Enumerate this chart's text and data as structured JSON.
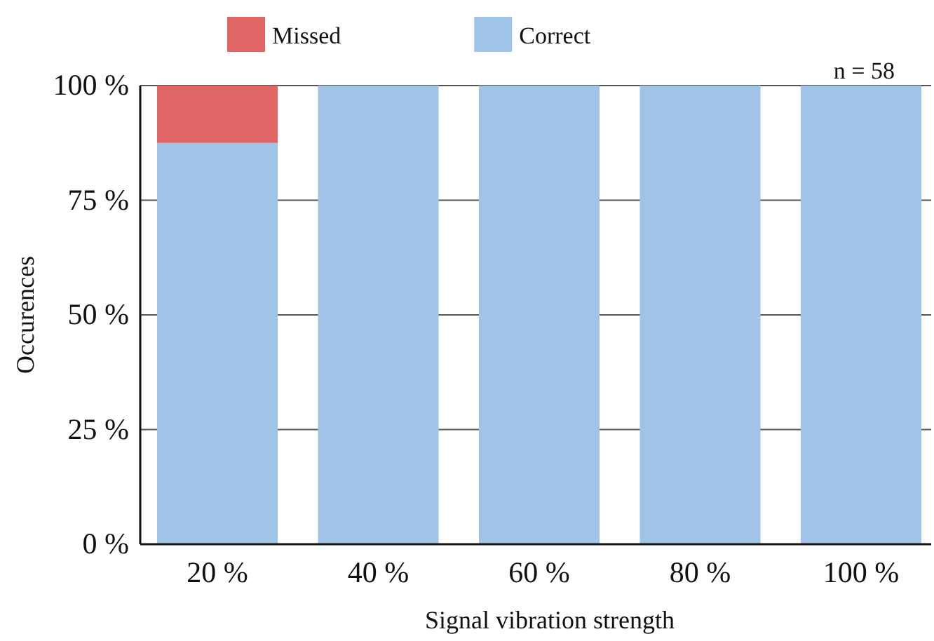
{
  "chart_data": {
    "type": "bar",
    "stacked": true,
    "categories": [
      "20 %",
      "40 %",
      "60 %",
      "80 %",
      "100 %"
    ],
    "series": [
      {
        "name": "Correct",
        "color": "#a0c4e8",
        "values": [
          87.5,
          100,
          100,
          100,
          100
        ]
      },
      {
        "name": "Missed",
        "color": "#e06666",
        "values": [
          12.5,
          0,
          0,
          0,
          0
        ]
      }
    ],
    "xlabel": "Signal vibration strength",
    "ylabel": "Occurences",
    "ylim": [
      0,
      100
    ],
    "yticks": [
      {
        "value": 0,
        "label": "0 %"
      },
      {
        "value": 25,
        "label": "25 %"
      },
      {
        "value": 50,
        "label": "50 %"
      },
      {
        "value": 75,
        "label": "75 %"
      },
      {
        "value": 100,
        "label": "100 %"
      }
    ],
    "grid": "y",
    "legend": "top",
    "annotations": [
      "n = 58"
    ]
  }
}
